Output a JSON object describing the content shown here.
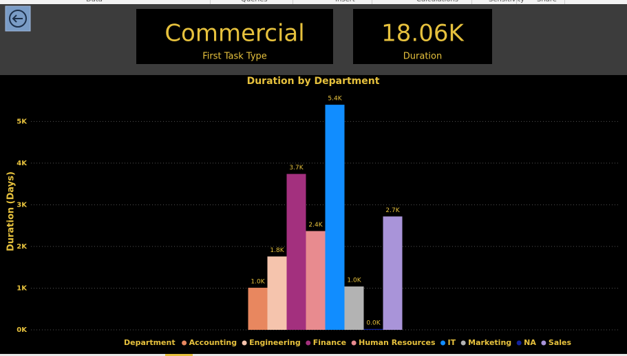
{
  "ribbon": [
    "Data",
    "Queries",
    "Insert",
    "Calculations",
    "Sensitivity",
    "Share"
  ],
  "cards": [
    {
      "value": "Commercial",
      "label": "First Task Type"
    },
    {
      "value": "18.06K",
      "label": "Duration"
    }
  ],
  "chart_data": {
    "type": "bar",
    "title": "Duration by Department",
    "y_label": "Duration (Days)",
    "legend_title": "Department",
    "legend": "bottom",
    "grid": true,
    "categories": [
      null
    ],
    "ylim": [
      0,
      5600
    ],
    "yticks": [
      {
        "value": 0,
        "label": "0K"
      },
      {
        "value": 1000,
        "label": "1K"
      },
      {
        "value": 2000,
        "label": "2K"
      },
      {
        "value": 3000,
        "label": "3K"
      },
      {
        "value": 4000,
        "label": "4K"
      },
      {
        "value": 5000,
        "label": "5K"
      }
    ],
    "series": [
      {
        "name": "Accounting",
        "color": "#e8875f",
        "values": [
          1010
        ],
        "value_labels": [
          "1.0K"
        ]
      },
      {
        "name": "Engineering",
        "color": "#f5c4ad",
        "values": [
          1760
        ],
        "value_labels": [
          "1.8K"
        ]
      },
      {
        "name": "Finance",
        "color": "#a3307e",
        "values": [
          3740
        ],
        "value_labels": [
          "3.7K"
        ]
      },
      {
        "name": "Human Resources",
        "color": "#e88b8f",
        "values": [
          2370
        ],
        "value_labels": [
          "2.4K"
        ]
      },
      {
        "name": "IT",
        "color": "#118dff",
        "values": [
          5400
        ],
        "value_labels": [
          "5.4K"
        ]
      },
      {
        "name": "Marketing",
        "color": "#b3b3b3",
        "values": [
          1040
        ],
        "value_labels": [
          "1.0K"
        ]
      },
      {
        "name": "NA",
        "color": "#12239e",
        "values": [
          20
        ],
        "value_labels": [
          "0.0K"
        ]
      },
      {
        "name": "Sales",
        "color": "#a994d9",
        "values": [
          2720
        ],
        "value_labels": [
          "2.7K"
        ]
      }
    ]
  }
}
